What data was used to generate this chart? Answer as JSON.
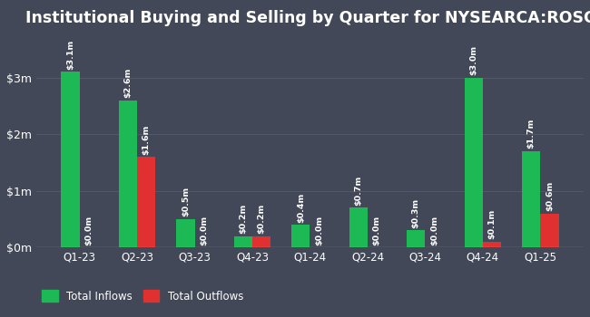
{
  "title": "Institutional Buying and Selling by Quarter for NYSEARCA:ROSC",
  "quarters": [
    "Q1-23",
    "Q2-23",
    "Q3-23",
    "Q4-23",
    "Q1-24",
    "Q2-24",
    "Q3-24",
    "Q4-24",
    "Q1-25"
  ],
  "inflows": [
    3.1,
    2.6,
    0.5,
    0.2,
    0.4,
    0.7,
    0.3,
    3.0,
    1.7
  ],
  "outflows": [
    0.0,
    1.6,
    0.0,
    0.2,
    0.0,
    0.0,
    0.0,
    0.1,
    0.6
  ],
  "inflow_labels": [
    "$3.1m",
    "$2.6m",
    "$0.5m",
    "$0.2m",
    "$0.4m",
    "$0.7m",
    "$0.3m",
    "$3.0m",
    "$1.7m"
  ],
  "outflow_labels": [
    "$0.0m",
    "$1.6m",
    "$0.0m",
    "$0.2m",
    "$0.0m",
    "$0.0m",
    "$0.0m",
    "$0.1m",
    "$0.6m"
  ],
  "inflow_color": "#1db954",
  "outflow_color": "#e03030",
  "background_color": "#424857",
  "text_color": "#ffffff",
  "grid_color": "#535868",
  "title_fontsize": 12.5,
  "yticks": [
    0,
    1,
    2,
    3
  ],
  "ytick_labels": [
    "$0m",
    "$1m",
    "$2m",
    "$3m"
  ],
  "ylim": [
    0,
    3.7
  ],
  "bar_width": 0.32,
  "legend_inflow": "Total Inflows",
  "legend_outflow": "Total Outflows",
  "label_fontsize": 6.8
}
